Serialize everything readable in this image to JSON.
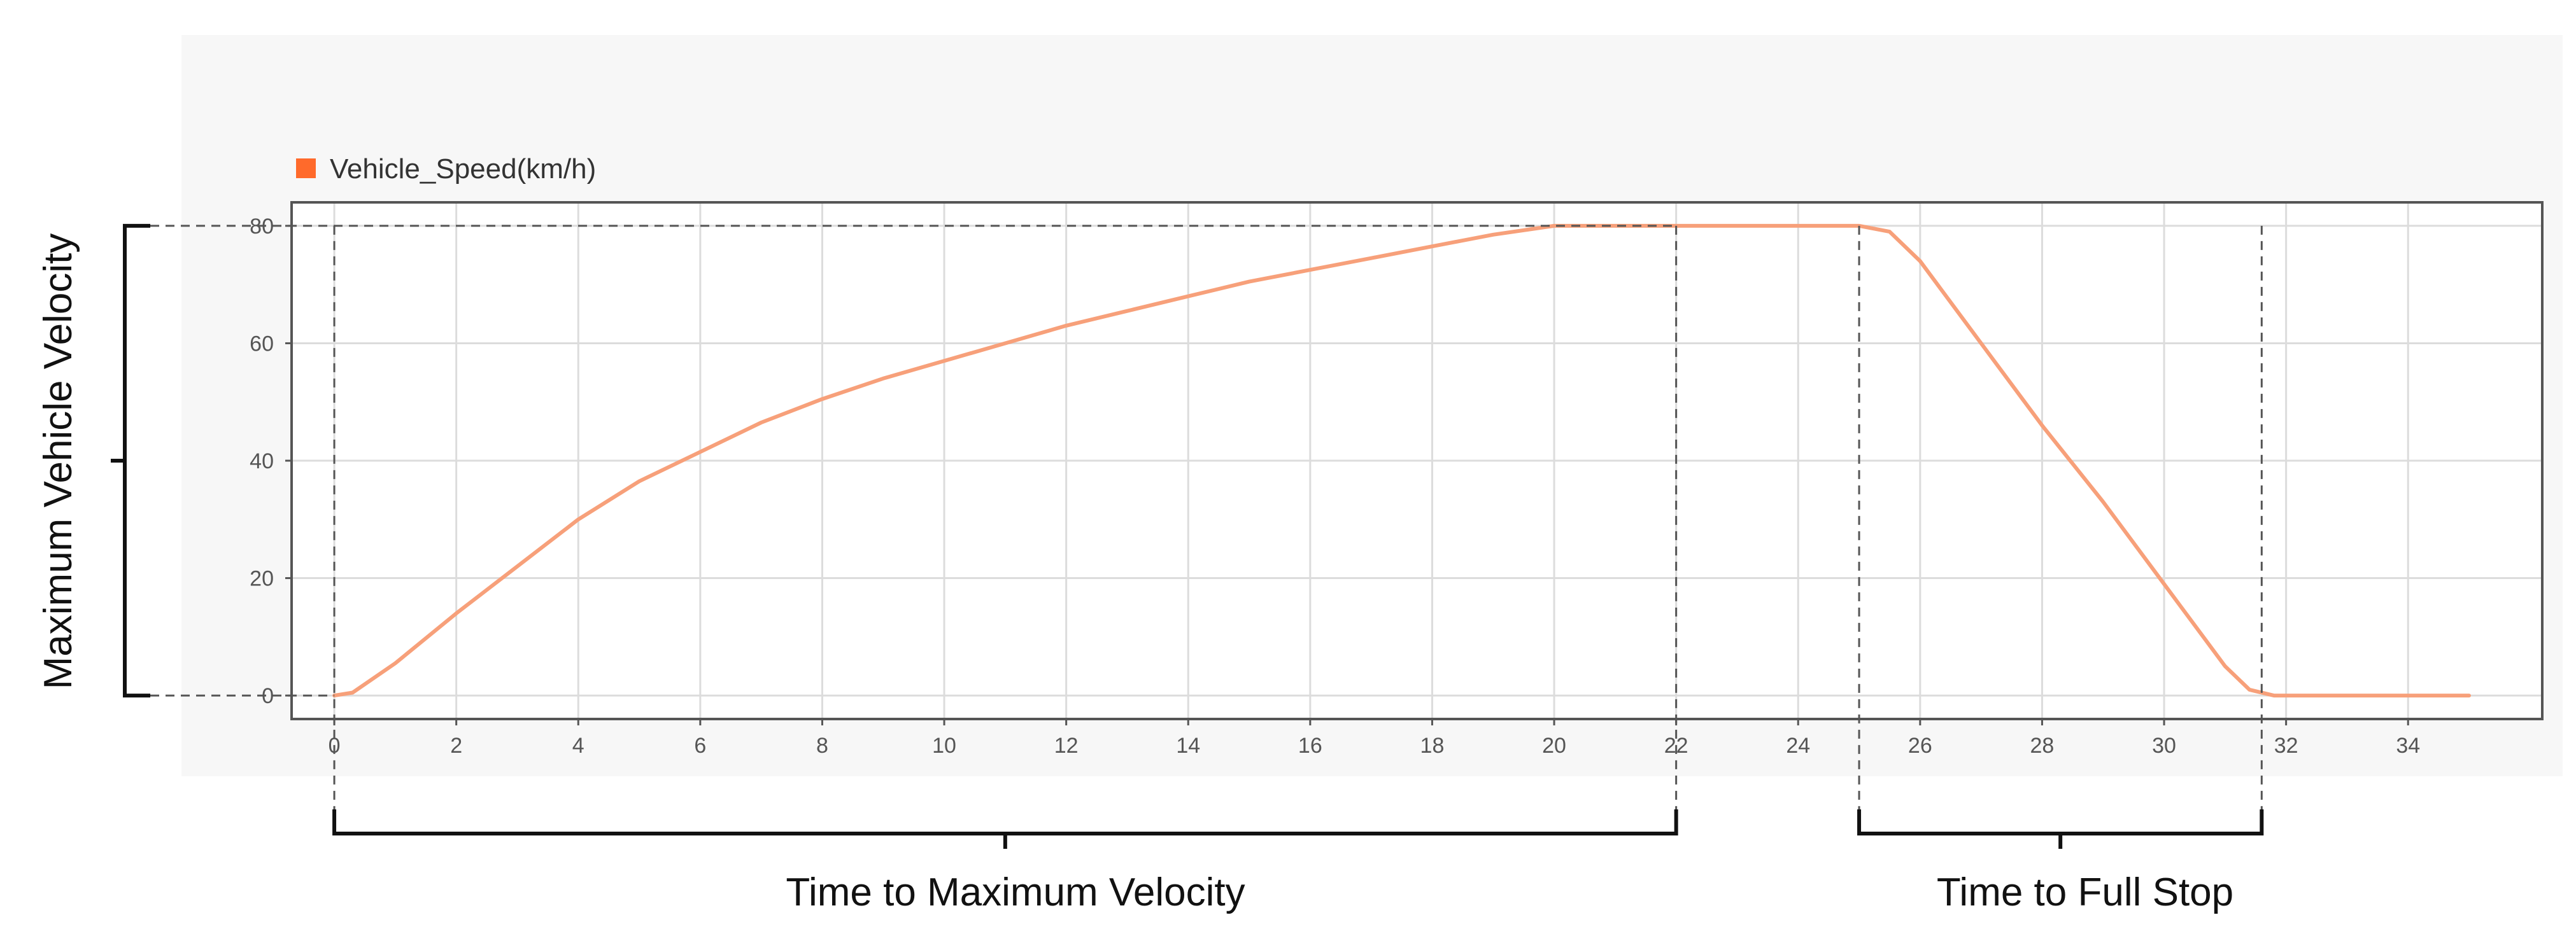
{
  "chart_data": {
    "type": "line",
    "legend": {
      "label": "Vehicle_Speed(km/h)",
      "placement": "top-left"
    },
    "series": [
      {
        "name": "Vehicle_Speed(km/h)",
        "color": "#f7a07a",
        "legend_color": "#ff6a2b",
        "x": [
          0,
          0.3,
          1,
          2,
          3,
          4,
          5,
          6,
          7,
          8,
          9,
          10,
          11,
          12,
          13,
          14,
          15,
          16,
          17,
          18,
          19,
          20,
          21,
          22,
          23,
          24,
          25,
          25.5,
          26,
          27,
          28,
          29,
          30,
          31,
          31.4,
          31.8,
          33,
          35
        ],
        "y": [
          0,
          0.5,
          5.5,
          14,
          22,
          30,
          36.5,
          41.5,
          46.5,
          50.5,
          54,
          57,
          60,
          63,
          65.5,
          68,
          70.5,
          72.5,
          74.5,
          76.5,
          78.5,
          80,
          80,
          80,
          80,
          80,
          80,
          79,
          74,
          60,
          46,
          33,
          19,
          5,
          1,
          0,
          0,
          0
        ]
      }
    ],
    "xlim": [
      -0.7,
      36.2
    ],
    "ylim": [
      -4,
      84
    ],
    "x_ticks": [
      0,
      2,
      4,
      6,
      8,
      10,
      12,
      14,
      16,
      18,
      20,
      22,
      24,
      26,
      28,
      30,
      32,
      34
    ],
    "y_ticks": [
      0,
      20,
      40,
      60,
      80
    ],
    "grid": true,
    "annotations": [
      {
        "label": "Maximum Vehicle Velocity",
        "axis": "y",
        "from": 0,
        "to": 80
      },
      {
        "label": "Time to Maximum Velocity",
        "axis": "x",
        "from": 0,
        "to": 22
      },
      {
        "label": "Time to Full Stop",
        "axis": "x",
        "from": 25,
        "to": 31.6
      }
    ]
  }
}
